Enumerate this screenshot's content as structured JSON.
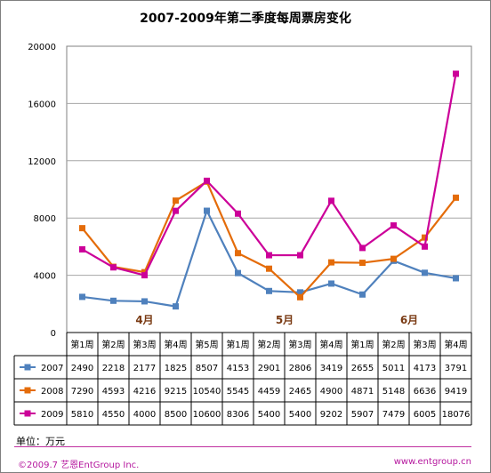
{
  "chart_data": {
    "type": "line",
    "title": "2007-2009年第二季度每周票房变化",
    "categories": [
      "第1周",
      "第2周",
      "第3周",
      "第4周",
      "第5周",
      "第1周",
      "第2周",
      "第3周",
      "第4周",
      "第1周",
      "第2周",
      "第3周",
      "第4周"
    ],
    "months": [
      {
        "label": "4月",
        "weeks": [
          0,
          1,
          2,
          3,
          4
        ]
      },
      {
        "label": "5月",
        "weeks": [
          5,
          6,
          7,
          8
        ]
      },
      {
        "label": "6月",
        "weeks": [
          9,
          10,
          11,
          12
        ]
      }
    ],
    "series": [
      {
        "name": "2007",
        "color": "#4f81bd",
        "marker": "square",
        "values": [
          2490,
          2218,
          2177,
          1825,
          8507,
          4153,
          2901,
          2806,
          3419,
          2655,
          5011,
          4173,
          3791
        ]
      },
      {
        "name": "2008",
        "color": "#e46c0a",
        "marker": "square",
        "values": [
          7290,
          4593,
          4216,
          9215,
          10540,
          5545,
          4459,
          2465,
          4900,
          4871,
          5148,
          6636,
          9419
        ]
      },
      {
        "name": "2009",
        "color": "#cc0099",
        "marker": "square",
        "values": [
          5810,
          4550,
          4000,
          8500,
          10600,
          8306,
          5400,
          5400,
          9202,
          5907,
          7479,
          6005,
          18076
        ]
      }
    ],
    "yticks": [
      0,
      4000,
      8000,
      12000,
      16000,
      20000
    ],
    "ylim": [
      0,
      20000
    ],
    "grid": true,
    "legend": "data-table"
  },
  "unit_label": "单位：万元",
  "footer": {
    "left": "©2009.7 艺恩EntGroup Inc.",
    "right": "www.entgroup.cn"
  }
}
